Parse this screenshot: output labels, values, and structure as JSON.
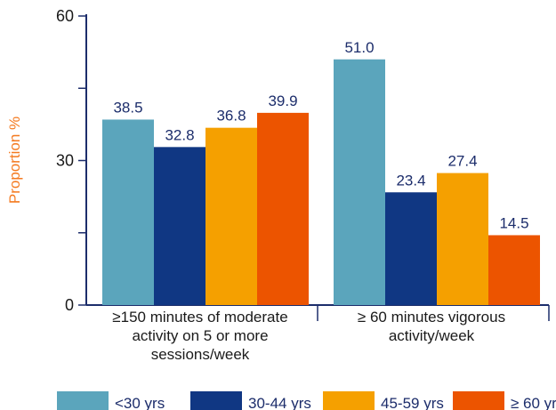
{
  "chart_data": {
    "type": "bar",
    "ylabel": "Proportion %",
    "ylim": [
      0,
      60
    ],
    "yticks": [
      "0",
      "30",
      "60"
    ],
    "categories": [
      [
        "≥150 minutes of moderate",
        "activity on 5 or more",
        "sessions/week"
      ],
      [
        "≥ 60 minutes vigorous",
        "activity/week"
      ]
    ],
    "series": [
      {
        "name": "<30 yrs",
        "values": [
          38.5,
          51.0
        ],
        "labels": [
          "38.5",
          "51.0"
        ],
        "color": "#5ba5bc"
      },
      {
        "name": "30-44 yrs",
        "values": [
          32.8,
          23.4
        ],
        "labels": [
          "32.8",
          "23.4"
        ],
        "color": "#103783"
      },
      {
        "name": "45-59 yrs",
        "values": [
          36.8,
          27.4
        ],
        "labels": [
          "36.8",
          "27.4"
        ],
        "color": "#f5a000"
      },
      {
        "name": "≥ 60 yrs",
        "values": [
          39.9,
          14.5
        ],
        "labels": [
          "39.9",
          "14.5"
        ],
        "color": "#ec5400"
      }
    ],
    "legend": "bottom",
    "grid": false,
    "colors": {
      "axis": "#1c2d6b",
      "ylabel": "#f47a20"
    }
  }
}
